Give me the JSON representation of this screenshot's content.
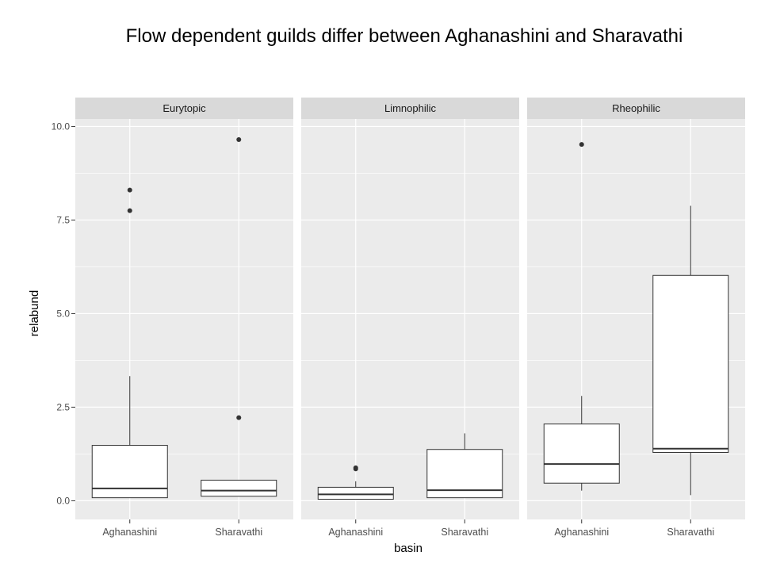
{
  "slide_title": "Flow dependent guilds differ between Aghanashini and Sharavathi",
  "colors": {
    "panel_bg": "#ebebeb",
    "strip_bg": "#d9d9d9",
    "grid": "#ffffff",
    "box_fill": "#ffffff",
    "box_line": "#333333",
    "text": "#4d4d4d",
    "title_text": "#1a1a1a"
  },
  "chart_data": {
    "type": "box",
    "xlabel": "basin",
    "ylabel": "relabund",
    "ylim": [
      -0.5,
      10.2
    ],
    "yticks": [
      0.0,
      2.5,
      5.0,
      7.5,
      10.0
    ],
    "ytick_labels": [
      "0.0",
      "2.5",
      "5.0",
      "7.5",
      "10.0"
    ],
    "categories": [
      "Aghanashini",
      "Sharavathi"
    ],
    "grid": true,
    "facets": [
      {
        "name": "Eurytopic",
        "boxes": [
          {
            "category": "Aghanashini",
            "whisker_low": 0.08,
            "q1": 0.08,
            "median": 0.33,
            "q3": 1.48,
            "whisker_high": 3.33,
            "outliers": [
              7.75,
              8.3
            ]
          },
          {
            "category": "Sharavathi",
            "whisker_low": 0.12,
            "q1": 0.12,
            "median": 0.27,
            "q3": 0.55,
            "whisker_high": 0.55,
            "outliers": [
              2.22,
              9.65
            ]
          }
        ]
      },
      {
        "name": "Limnophilic",
        "boxes": [
          {
            "category": "Aghanashini",
            "whisker_low": 0.04,
            "q1": 0.04,
            "median": 0.17,
            "q3": 0.36,
            "whisker_high": 0.52,
            "outliers": [
              0.85,
              0.88
            ]
          },
          {
            "category": "Sharavathi",
            "whisker_low": 0.08,
            "q1": 0.08,
            "median": 0.28,
            "q3": 1.37,
            "whisker_high": 1.8,
            "outliers": []
          }
        ]
      },
      {
        "name": "Rheophilic",
        "boxes": [
          {
            "category": "Aghanashini",
            "whisker_low": 0.27,
            "q1": 0.47,
            "median": 0.98,
            "q3": 2.05,
            "whisker_high": 2.8,
            "outliers": [
              9.52
            ]
          },
          {
            "category": "Sharavathi",
            "whisker_low": 0.15,
            "q1": 1.29,
            "median": 1.39,
            "q3": 6.02,
            "whisker_high": 7.88,
            "outliers": []
          }
        ]
      }
    ]
  }
}
